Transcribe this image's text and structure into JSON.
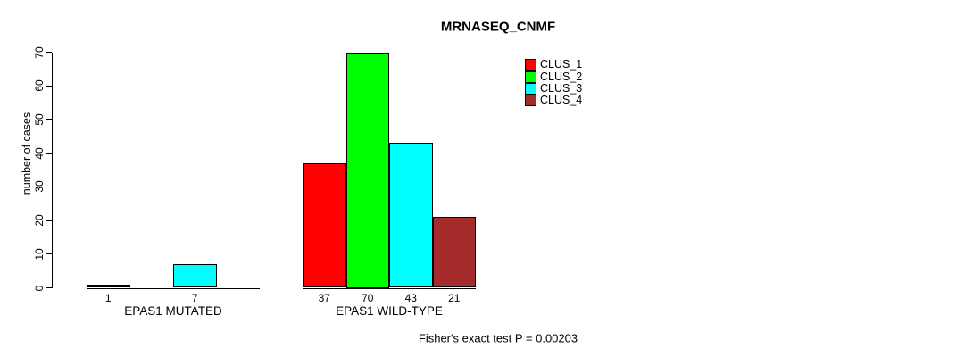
{
  "title": "MRNASEQ_CNMF",
  "y_axis": {
    "label": "number of cases"
  },
  "footer": "Fisher's exact test P = 0.00203",
  "chart_data": {
    "type": "bar",
    "title": "MRNASEQ_CNMF",
    "xlabel": "",
    "ylabel": "number of cases",
    "ylim": [
      0,
      70
    ],
    "yticks": [
      0,
      10,
      20,
      30,
      40,
      50,
      60,
      70
    ],
    "categories": [
      "EPAS1 MUTATED",
      "EPAS1 WILD-TYPE"
    ],
    "series": [
      {
        "name": "CLUS_1",
        "color": "#ff0000",
        "values": [
          1,
          37
        ]
      },
      {
        "name": "CLUS_2",
        "color": "#00ff00",
        "values": [
          0,
          70
        ]
      },
      {
        "name": "CLUS_3",
        "color": "#00ffff",
        "values": [
          7,
          43
        ]
      },
      {
        "name": "CLUS_4",
        "color": "#a52a2a",
        "values": [
          0,
          21
        ]
      }
    ],
    "bar_value_labels": true,
    "zero_bars_drawn_as_flat_line": true,
    "legend_position": "top-right",
    "grid": false,
    "annotation": "Fisher's exact test P = 0.00203"
  }
}
